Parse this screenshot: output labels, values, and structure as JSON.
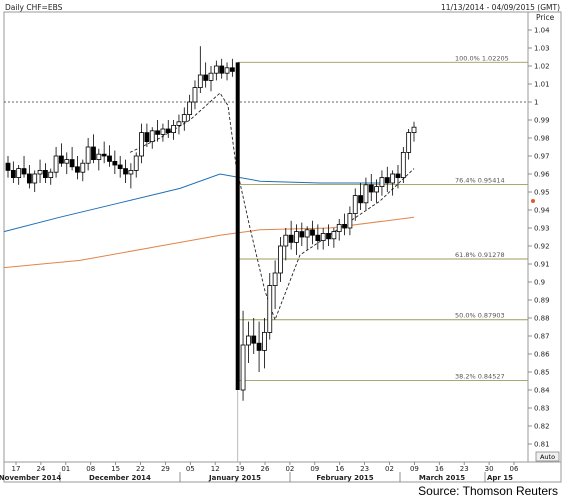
{
  "chart_data": {
    "type": "candlestick",
    "title": "Daily CHF=EBS",
    "date_range": "11/13/2014 - 04/09/2015 (GMT)",
    "ylabel": "Price",
    "ylim": [
      0.8,
      1.05
    ],
    "y_ticks": [
      "1.04",
      "1.03",
      "1.02",
      "1.01",
      "1",
      "0.99",
      "0.98",
      "0.97",
      "0.96",
      "0.95",
      "0.94",
      "0.93",
      "0.92",
      "0.91",
      "0.9",
      "0.89",
      "0.88",
      "0.87",
      "0.86",
      "0.85",
      "0.84",
      "0.83",
      "0.82",
      "0.81"
    ],
    "auto_label": "Auto",
    "x_day_ticks": [
      "17",
      "24",
      "01",
      "08",
      "15",
      "22",
      "29",
      "05",
      "12",
      "19",
      "26",
      "02",
      "09",
      "16",
      "23",
      "02",
      "09",
      "16",
      "23",
      "30",
      "06"
    ],
    "x_month_labels": [
      "November 2014",
      "December 2014",
      "January 2015",
      "February 2015",
      "March 2015",
      "Apr 15"
    ],
    "fib_levels": [
      {
        "label": "100.0% 1.02205",
        "value": 1.02205
      },
      {
        "label": "76.4% 0.95414",
        "value": 0.95414
      },
      {
        "label": "61.8% 0.91278",
        "value": 0.91278
      },
      {
        "label": "50.0% 0.87903",
        "value": 0.87903
      },
      {
        "label": "38.2% 0.84527",
        "value": 0.84527
      }
    ],
    "horizontal_line": 1.0,
    "candles": [
      [
        0.966,
        0.97,
        0.958,
        0.962
      ],
      [
        0.962,
        0.967,
        0.955,
        0.958
      ],
      [
        0.958,
        0.965,
        0.954,
        0.963
      ],
      [
        0.963,
        0.97,
        0.958,
        0.96
      ],
      [
        0.96,
        0.965,
        0.952,
        0.955
      ],
      [
        0.955,
        0.962,
        0.95,
        0.96
      ],
      [
        0.96,
        0.968,
        0.955,
        0.962
      ],
      [
        0.962,
        0.966,
        0.955,
        0.958
      ],
      [
        0.958,
        0.963,
        0.954,
        0.961
      ],
      [
        0.961,
        0.975,
        0.958,
        0.97
      ],
      [
        0.97,
        0.977,
        0.964,
        0.966
      ],
      [
        0.966,
        0.972,
        0.96,
        0.968
      ],
      [
        0.968,
        0.975,
        0.962,
        0.964
      ],
      [
        0.964,
        0.97,
        0.957,
        0.961
      ],
      [
        0.961,
        0.968,
        0.956,
        0.966
      ],
      [
        0.966,
        0.98,
        0.962,
        0.975
      ],
      [
        0.975,
        0.982,
        0.966,
        0.968
      ],
      [
        0.968,
        0.974,
        0.962,
        0.971
      ],
      [
        0.971,
        0.978,
        0.966,
        0.97
      ],
      [
        0.97,
        0.976,
        0.964,
        0.967
      ],
      [
        0.967,
        0.973,
        0.96,
        0.965
      ],
      [
        0.965,
        0.97,
        0.958,
        0.963
      ],
      [
        0.963,
        0.968,
        0.955,
        0.96
      ],
      [
        0.96,
        0.966,
        0.952,
        0.962
      ],
      [
        0.962,
        0.972,
        0.958,
        0.97
      ],
      [
        0.97,
        0.988,
        0.966,
        0.983
      ],
      [
        0.983,
        0.988,
        0.975,
        0.978
      ],
      [
        0.978,
        0.986,
        0.974,
        0.984
      ],
      [
        0.984,
        0.99,
        0.978,
        0.982
      ],
      [
        0.982,
        0.988,
        0.978,
        0.985
      ],
      [
        0.985,
        0.99,
        0.98,
        0.983
      ],
      [
        0.983,
        0.99,
        0.979,
        0.987
      ],
      [
        0.987,
        0.993,
        0.982,
        0.989
      ],
      [
        0.989,
        0.997,
        0.984,
        0.993
      ],
      [
        0.993,
        1.004,
        0.99,
        1.0
      ],
      [
        1.0,
        1.012,
        0.996,
        1.008
      ],
      [
        1.008,
        1.031,
        1.005,
        1.015
      ],
      [
        1.015,
        1.022,
        1.008,
        1.012
      ],
      [
        1.012,
        1.02,
        1.006,
        1.016
      ],
      [
        1.016,
        1.023,
        1.012,
        1.02
      ],
      [
        1.02,
        1.024,
        1.013,
        1.016
      ],
      [
        1.016,
        1.022,
        1.012,
        1.019
      ],
      [
        1.019,
        1.024,
        1.014,
        1.017
      ],
      [
        1.017,
        1.022,
        0.84,
        0.84
      ],
      [
        0.84,
        0.884,
        0.834,
        0.865
      ],
      [
        0.865,
        0.878,
        0.855,
        0.87
      ],
      [
        0.87,
        0.88,
        0.86,
        0.866
      ],
      [
        0.866,
        0.878,
        0.85,
        0.862
      ],
      [
        0.862,
        0.88,
        0.852,
        0.872
      ],
      [
        0.872,
        0.905,
        0.868,
        0.898
      ],
      [
        0.898,
        0.912,
        0.885,
        0.905
      ],
      [
        0.905,
        0.925,
        0.9,
        0.92
      ],
      [
        0.92,
        0.93,
        0.912,
        0.926
      ],
      [
        0.926,
        0.934,
        0.918,
        0.922
      ],
      [
        0.922,
        0.932,
        0.915,
        0.928
      ],
      [
        0.928,
        0.933,
        0.92,
        0.925
      ],
      [
        0.925,
        0.931,
        0.918,
        0.929
      ],
      [
        0.929,
        0.934,
        0.921,
        0.926
      ],
      [
        0.926,
        0.932,
        0.918,
        0.923
      ],
      [
        0.923,
        0.93,
        0.918,
        0.927
      ],
      [
        0.927,
        0.932,
        0.92,
        0.924
      ],
      [
        0.924,
        0.93,
        0.919,
        0.928
      ],
      [
        0.928,
        0.935,
        0.923,
        0.932
      ],
      [
        0.932,
        0.938,
        0.926,
        0.93
      ],
      [
        0.93,
        0.942,
        0.926,
        0.938
      ],
      [
        0.938,
        0.952,
        0.934,
        0.948
      ],
      [
        0.948,
        0.955,
        0.94,
        0.944
      ],
      [
        0.944,
        0.958,
        0.94,
        0.954
      ],
      [
        0.954,
        0.96,
        0.945,
        0.95
      ],
      [
        0.95,
        0.957,
        0.944,
        0.953
      ],
      [
        0.953,
        0.962,
        0.948,
        0.958
      ],
      [
        0.958,
        0.964,
        0.95,
        0.955
      ],
      [
        0.955,
        0.962,
        0.948,
        0.96
      ],
      [
        0.96,
        0.965,
        0.952,
        0.958
      ],
      [
        0.958,
        0.975,
        0.955,
        0.972
      ],
      [
        0.972,
        0.985,
        0.968,
        0.983
      ],
      [
        0.983,
        0.989,
        0.978,
        0.986
      ]
    ]
  },
  "source": "Source: Thomson Reuters"
}
